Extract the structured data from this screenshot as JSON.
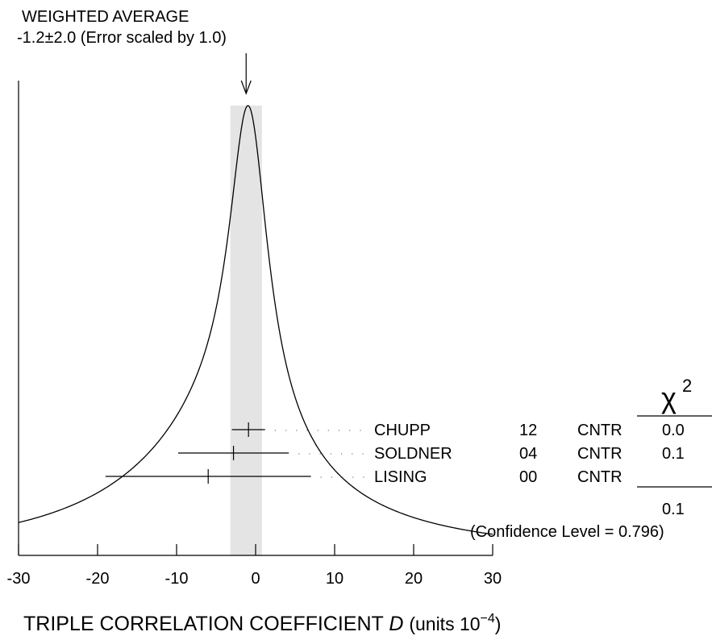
{
  "chart_data": {
    "type": "scatter",
    "title": "WEIGHTED AVERAGE",
    "subtitle": "-1.2±2.0 (Error scaled by 1.0)",
    "weighted_average": {
      "value": -1.2,
      "error": 2.0,
      "scale_factor": 1.0
    },
    "xlabel": "TRIPLE CORRELATION COEFFICIENT",
    "xlabel_symbol": "D",
    "xlabel_units_prefix": "(units 10",
    "xlabel_units_exp": "−4",
    "xlabel_units_suffix": ")",
    "xlim": [
      -30,
      30
    ],
    "x_ticks": [
      -30,
      -20,
      -10,
      0,
      10,
      20,
      30
    ],
    "x_tick_labels": [
      "-30",
      "-20",
      "-10",
      "0",
      "10",
      "20",
      "30"
    ],
    "chi2_header": "χ",
    "chi2_header_exp": "2",
    "measurements": [
      {
        "name": "CHUPP",
        "year": "12",
        "tech": "CNTR",
        "value": -0.9,
        "error": 2.1,
        "chi2": "0.0"
      },
      {
        "name": "SOLDNER",
        "year": "04",
        "tech": "CNTR",
        "value": -2.8,
        "error": 7.0,
        "chi2": "0.1"
      },
      {
        "name": "LISING",
        "year": "00",
        "tech": "CNTR",
        "value": -6.0,
        "error": 13.0,
        "chi2": ""
      }
    ],
    "chi2_total": "0.1",
    "confidence_level_text": "(Confidence Level = 0.796)",
    "ideogram": {
      "peak": -1.2
    }
  },
  "colors": {
    "band": "#e4e4e4",
    "ink": "#000000"
  }
}
